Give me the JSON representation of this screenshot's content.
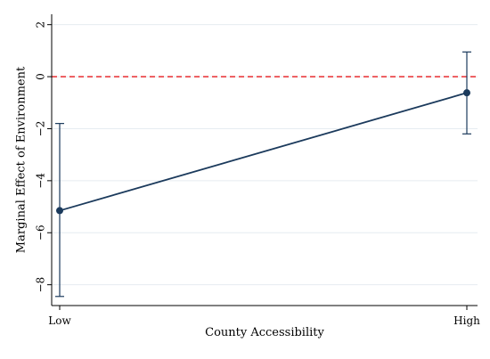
{
  "chart_data": {
    "type": "line",
    "title": "",
    "xlabel": "County Accessibility",
    "ylabel": "Marginal Effect of Environment",
    "categories": [
      "Low",
      "High"
    ],
    "series": [
      {
        "values": [
          -5.15,
          -0.62
        ],
        "ci_lower": [
          -8.45,
          -2.2
        ],
        "ci_upper": [
          -1.8,
          0.95
        ]
      }
    ],
    "yticks": [
      2,
      0,
      -2,
      -4,
      -6,
      -8
    ],
    "ylim": [
      -8.8,
      2.4
    ],
    "grid": true,
    "reference_line": {
      "y": 0,
      "style": "dashed",
      "color": "#e8191d"
    },
    "colors": {
      "series": "#1b3a5c",
      "reference": "#e8191d",
      "grid": "#e6ecf1"
    }
  }
}
